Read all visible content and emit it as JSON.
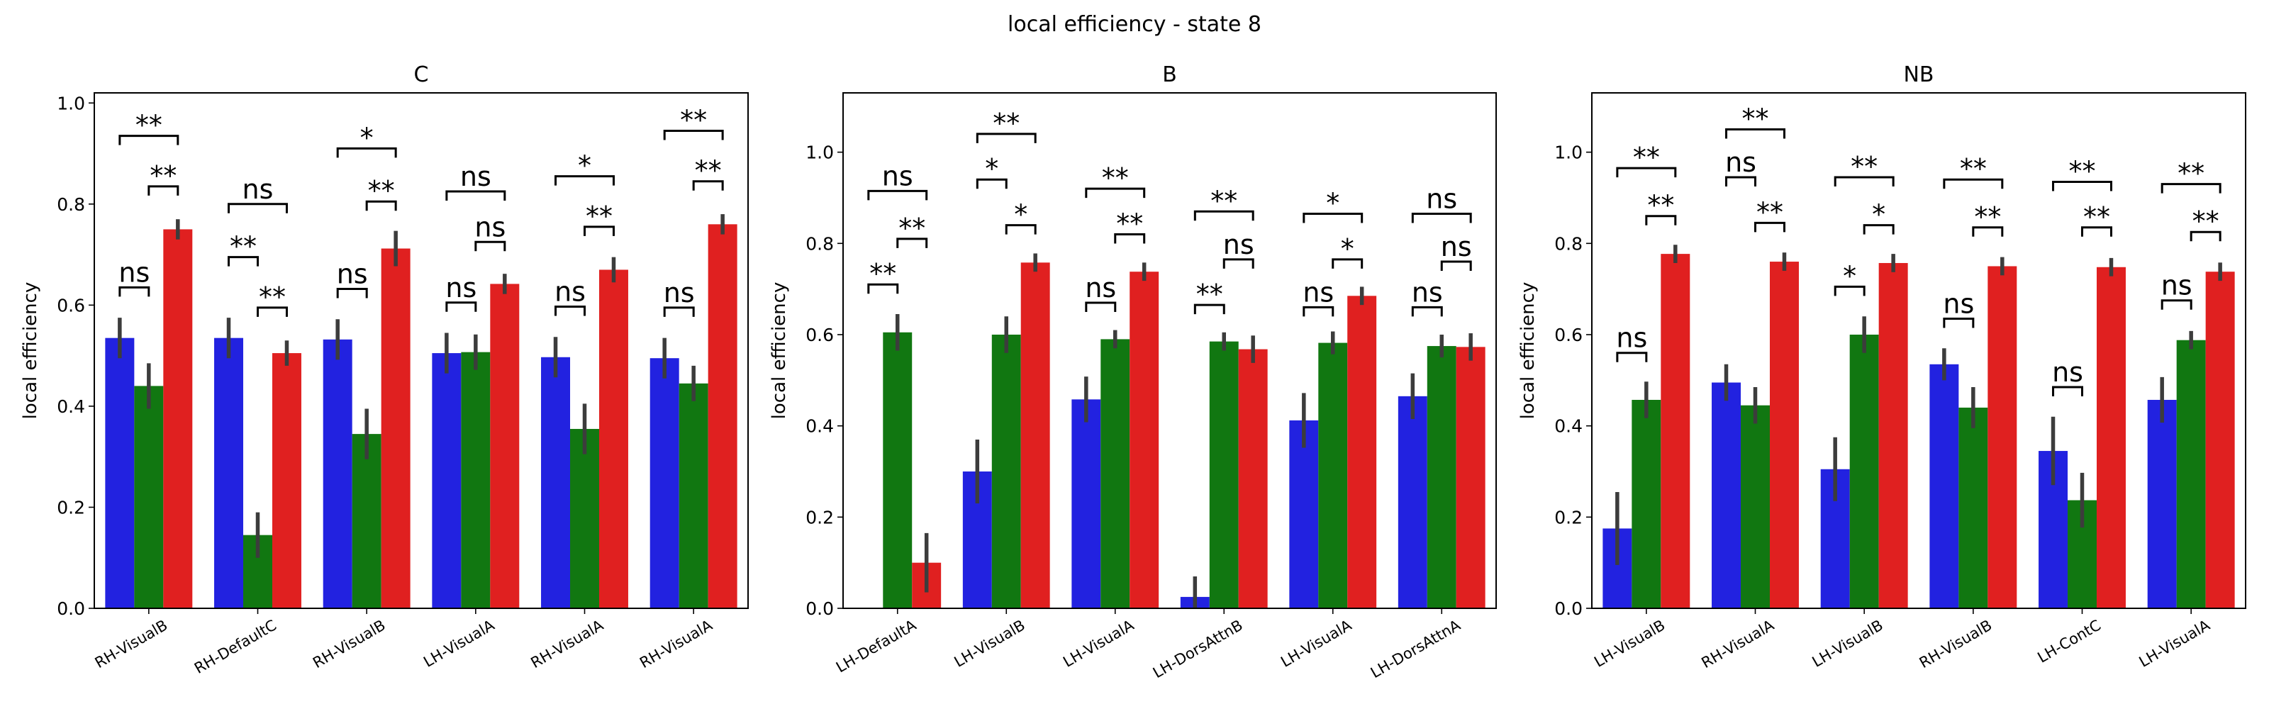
{
  "figure": {
    "suptitle": "local efficiency - state 8"
  },
  "chart_data": [
    {
      "type": "bar",
      "title": "C",
      "xlabel": "",
      "ylabel": "local efficiency",
      "ylim": [
        0,
        1.02
      ],
      "yticks": [
        "0.0",
        "0.2",
        "0.4",
        "0.6",
        "0.8",
        "1.0"
      ],
      "categories": [
        "RH-VisualB",
        "RH-DefaultC",
        "RH-VisualB",
        "LH-VisualA",
        "RH-VisualA",
        "RH-VisualA"
      ],
      "series": [
        {
          "color": "#2222e0",
          "values": [
            0.535,
            0.535,
            0.532,
            0.505,
            0.497,
            0.495
          ],
          "err": [
            0.04,
            0.04,
            0.04,
            0.04,
            0.04,
            0.04
          ]
        },
        {
          "color": "#117711",
          "values": [
            0.44,
            0.145,
            0.345,
            0.507,
            0.355,
            0.445
          ],
          "err": [
            0.045,
            0.045,
            0.05,
            0.035,
            0.05,
            0.035
          ]
        },
        {
          "color": "#e02020",
          "values": [
            0.75,
            0.505,
            0.712,
            0.642,
            0.67,
            0.76
          ],
          "err": [
            0.02,
            0.025,
            0.035,
            0.02,
            0.025,
            0.02
          ]
        }
      ],
      "annotations": [
        {
          "cat": 0,
          "from": 0,
          "to": 1,
          "label": "ns",
          "y": 0.635
        },
        {
          "cat": 0,
          "from": 1,
          "to": 2,
          "label": "**",
          "y": 0.835
        },
        {
          "cat": 0,
          "from": 0,
          "to": 2,
          "label": "**",
          "y": 0.935
        },
        {
          "cat": 1,
          "from": 0,
          "to": 1,
          "label": "**",
          "y": 0.695
        },
        {
          "cat": 1,
          "from": 1,
          "to": 2,
          "label": "**",
          "y": 0.595
        },
        {
          "cat": 1,
          "from": 0,
          "to": 2,
          "label": "ns",
          "y": 0.8
        },
        {
          "cat": 2,
          "from": 0,
          "to": 1,
          "label": "ns",
          "y": 0.632
        },
        {
          "cat": 2,
          "from": 1,
          "to": 2,
          "label": "**",
          "y": 0.805
        },
        {
          "cat": 2,
          "from": 0,
          "to": 2,
          "label": "*",
          "y": 0.91
        },
        {
          "cat": 3,
          "from": 0,
          "to": 1,
          "label": "ns",
          "y": 0.605
        },
        {
          "cat": 3,
          "from": 1,
          "to": 2,
          "label": "ns",
          "y": 0.725
        },
        {
          "cat": 3,
          "from": 0,
          "to": 2,
          "label": "ns",
          "y": 0.825
        },
        {
          "cat": 4,
          "from": 0,
          "to": 1,
          "label": "ns",
          "y": 0.597
        },
        {
          "cat": 4,
          "from": 1,
          "to": 2,
          "label": "**",
          "y": 0.755
        },
        {
          "cat": 4,
          "from": 0,
          "to": 2,
          "label": "*",
          "y": 0.855
        },
        {
          "cat": 5,
          "from": 0,
          "to": 1,
          "label": "ns",
          "y": 0.595
        },
        {
          "cat": 5,
          "from": 1,
          "to": 2,
          "label": "**",
          "y": 0.845
        },
        {
          "cat": 5,
          "from": 0,
          "to": 2,
          "label": "**",
          "y": 0.945
        }
      ]
    },
    {
      "type": "bar",
      "title": "B",
      "xlabel": "",
      "ylabel": "local efficiency",
      "ylim": [
        0,
        1.13
      ],
      "yticks": [
        "0.0",
        "0.2",
        "0.4",
        "0.6",
        "0.8",
        "1.0"
      ],
      "categories": [
        "LH-DefaultA",
        "LH-VisualB",
        "LH-VisualA",
        "LH-DorsAttnB",
        "LH-VisualA",
        "LH-DorsAttnA"
      ],
      "series": [
        {
          "color": "#2222e0",
          "values": [
            0.0,
            0.3,
            0.458,
            0.025,
            0.412,
            0.465
          ],
          "err": [
            0,
            0.07,
            0.05,
            0.045,
            0.06,
            0.05
          ]
        },
        {
          "color": "#117711",
          "values": [
            0.605,
            0.6,
            0.59,
            0.585,
            0.582,
            0.575
          ],
          "err": [
            0.04,
            0.04,
            0.02,
            0.02,
            0.025,
            0.025
          ]
        },
        {
          "color": "#e02020",
          "values": [
            0.1,
            0.758,
            0.738,
            0.568,
            0.685,
            0.573
          ],
          "err": [
            0.065,
            0.02,
            0.02,
            0.03,
            0.02,
            0.03
          ]
        }
      ],
      "annotations": [
        {
          "cat": 0,
          "from": 0,
          "to": 1,
          "label": "**",
          "y": 0.71
        },
        {
          "cat": 0,
          "from": 1,
          "to": 2,
          "label": "**",
          "y": 0.81
        },
        {
          "cat": 0,
          "from": 0,
          "to": 2,
          "label": "ns",
          "y": 0.915
        },
        {
          "cat": 1,
          "from": 0,
          "to": 1,
          "label": "*",
          "y": 0.94
        },
        {
          "cat": 1,
          "from": 1,
          "to": 2,
          "label": "*",
          "y": 0.84
        },
        {
          "cat": 1,
          "from": 0,
          "to": 2,
          "label": "**",
          "y": 1.04
        },
        {
          "cat": 2,
          "from": 0,
          "to": 1,
          "label": "ns",
          "y": 0.67
        },
        {
          "cat": 2,
          "from": 1,
          "to": 2,
          "label": "**",
          "y": 0.82
        },
        {
          "cat": 2,
          "from": 0,
          "to": 2,
          "label": "**",
          "y": 0.92
        },
        {
          "cat": 3,
          "from": 0,
          "to": 1,
          "label": "**",
          "y": 0.665
        },
        {
          "cat": 3,
          "from": 1,
          "to": 2,
          "label": "ns",
          "y": 0.765
        },
        {
          "cat": 3,
          "from": 0,
          "to": 2,
          "label": "**",
          "y": 0.87
        },
        {
          "cat": 4,
          "from": 0,
          "to": 1,
          "label": "ns",
          "y": 0.66
        },
        {
          "cat": 4,
          "from": 1,
          "to": 2,
          "label": "*",
          "y": 0.765
        },
        {
          "cat": 4,
          "from": 0,
          "to": 2,
          "label": "*",
          "y": 0.865
        },
        {
          "cat": 5,
          "from": 0,
          "to": 1,
          "label": "ns",
          "y": 0.66
        },
        {
          "cat": 5,
          "from": 1,
          "to": 2,
          "label": "ns",
          "y": 0.76
        },
        {
          "cat": 5,
          "from": 0,
          "to": 2,
          "label": "ns",
          "y": 0.865
        }
      ]
    },
    {
      "type": "bar",
      "title": "NB",
      "xlabel": "",
      "ylabel": "local efficiency",
      "ylim": [
        0,
        1.13
      ],
      "yticks": [
        "0.0",
        "0.2",
        "0.4",
        "0.6",
        "0.8",
        "1.0"
      ],
      "categories": [
        "LH-VisualB",
        "RH-VisualA",
        "LH-VisualB",
        "RH-VisualB",
        "LH-ContC",
        "LH-VisualA"
      ],
      "series": [
        {
          "color": "#2222e0",
          "values": [
            0.175,
            0.495,
            0.305,
            0.535,
            0.345,
            0.457
          ],
          "err": [
            0.08,
            0.04,
            0.07,
            0.035,
            0.075,
            0.05
          ]
        },
        {
          "color": "#117711",
          "values": [
            0.457,
            0.445,
            0.6,
            0.44,
            0.237,
            0.588
          ],
          "err": [
            0.04,
            0.04,
            0.04,
            0.045,
            0.06,
            0.02
          ]
        },
        {
          "color": "#e02020",
          "values": [
            0.777,
            0.76,
            0.757,
            0.75,
            0.748,
            0.738
          ],
          "err": [
            0.02,
            0.02,
            0.02,
            0.02,
            0.02,
            0.02
          ]
        }
      ],
      "annotations": [
        {
          "cat": 0,
          "from": 0,
          "to": 1,
          "label": "ns",
          "y": 0.56
        },
        {
          "cat": 0,
          "from": 1,
          "to": 2,
          "label": "**",
          "y": 0.86
        },
        {
          "cat": 0,
          "from": 0,
          "to": 2,
          "label": "**",
          "y": 0.965
        },
        {
          "cat": 1,
          "from": 0,
          "to": 1,
          "label": "ns",
          "y": 0.945
        },
        {
          "cat": 1,
          "from": 1,
          "to": 2,
          "label": "**",
          "y": 0.845
        },
        {
          "cat": 1,
          "from": 0,
          "to": 2,
          "label": "**",
          "y": 1.05
        },
        {
          "cat": 2,
          "from": 0,
          "to": 1,
          "label": "*",
          "y": 0.705
        },
        {
          "cat": 2,
          "from": 1,
          "to": 2,
          "label": "*",
          "y": 0.84
        },
        {
          "cat": 2,
          "from": 0,
          "to": 2,
          "label": "**",
          "y": 0.945
        },
        {
          "cat": 3,
          "from": 0,
          "to": 1,
          "label": "ns",
          "y": 0.635
        },
        {
          "cat": 3,
          "from": 1,
          "to": 2,
          "label": "**",
          "y": 0.835
        },
        {
          "cat": 3,
          "from": 0,
          "to": 2,
          "label": "**",
          "y": 0.94
        },
        {
          "cat": 4,
          "from": 0,
          "to": 1,
          "label": "ns",
          "y": 0.485
        },
        {
          "cat": 4,
          "from": 1,
          "to": 2,
          "label": "**",
          "y": 0.835
        },
        {
          "cat": 4,
          "from": 0,
          "to": 2,
          "label": "**",
          "y": 0.935
        },
        {
          "cat": 5,
          "from": 0,
          "to": 1,
          "label": "ns",
          "y": 0.675
        },
        {
          "cat": 5,
          "from": 1,
          "to": 2,
          "label": "**",
          "y": 0.825
        },
        {
          "cat": 5,
          "from": 0,
          "to": 2,
          "label": "**",
          "y": 0.93
        }
      ]
    }
  ]
}
